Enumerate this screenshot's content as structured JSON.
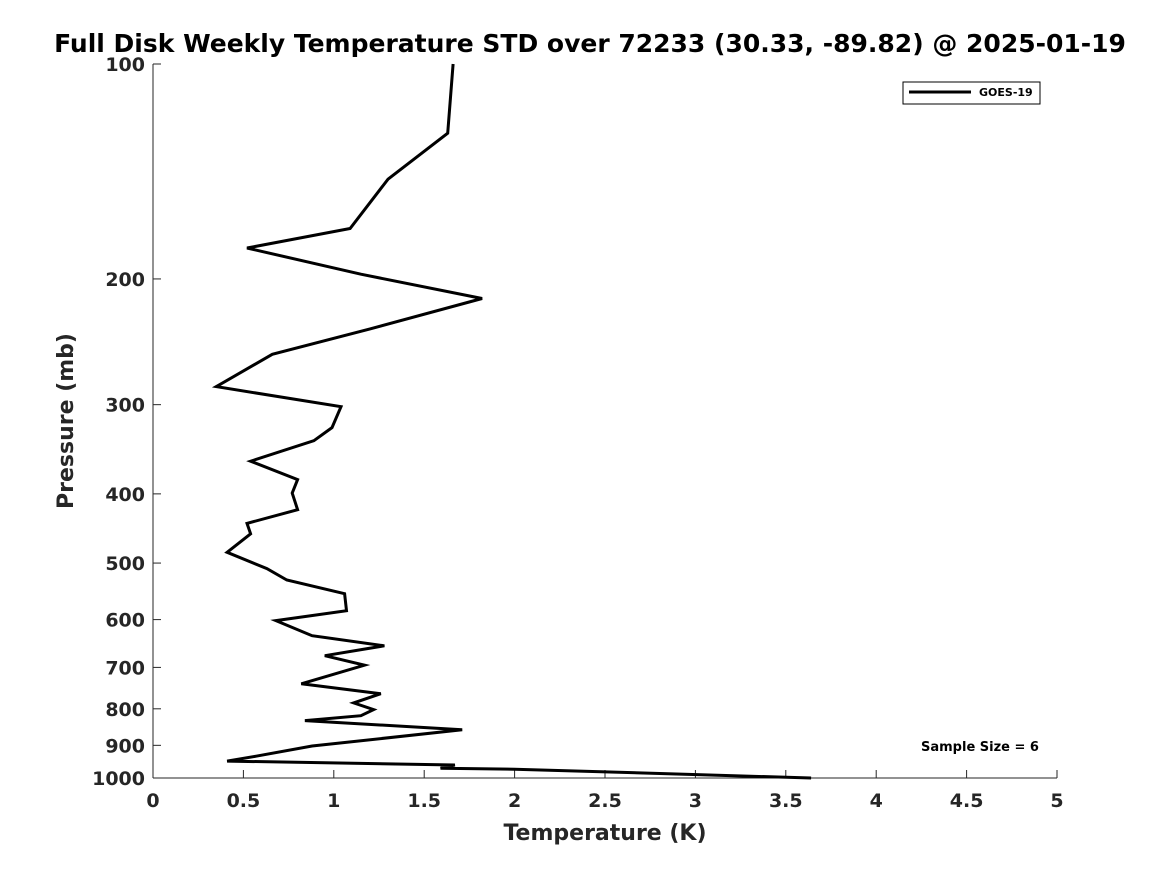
{
  "chart_data": {
    "type": "line",
    "title": "Full Disk Weekly Temperature STD over 72233 (30.33, -89.82) @ 2025-01-19",
    "xlabel": "Temperature (K)",
    "ylabel": "Pressure (mb)",
    "xlim": [
      0,
      5
    ],
    "ylim": [
      1000,
      100
    ],
    "y_scale": "log",
    "y_reversed": true,
    "grid": false,
    "legend_position": "top-right",
    "x_ticks": [
      0,
      0.5,
      1,
      1.5,
      2,
      2.5,
      3,
      3.5,
      4,
      4.5,
      5
    ],
    "x_tick_labels": [
      "0",
      "0.5",
      "1",
      "1.5",
      "2",
      "2.5",
      "3",
      "3.5",
      "4",
      "4.5",
      "5"
    ],
    "y_ticks": [
      100,
      200,
      300,
      400,
      500,
      600,
      700,
      800,
      900,
      1000
    ],
    "y_tick_labels": [
      "100",
      "200",
      "300",
      "400",
      "500",
      "600",
      "700",
      "800",
      "900",
      "1000"
    ],
    "series": [
      {
        "name": "GOES-19",
        "color": "#000000",
        "points": [
          [
            1.66,
            100
          ],
          [
            1.63,
            125
          ],
          [
            1.3,
            145
          ],
          [
            1.09,
            170
          ],
          [
            0.52,
            181
          ],
          [
            1.15,
            197
          ],
          [
            1.82,
            213
          ],
          [
            1.2,
            235
          ],
          [
            0.66,
            255
          ],
          [
            0.35,
            283
          ],
          [
            1.04,
            302
          ],
          [
            0.99,
            323
          ],
          [
            0.89,
            337
          ],
          [
            0.54,
            360
          ],
          [
            0.8,
            382
          ],
          [
            0.77,
            399
          ],
          [
            0.8,
            421
          ],
          [
            0.52,
            440
          ],
          [
            0.54,
            455
          ],
          [
            0.41,
            483
          ],
          [
            0.63,
            509
          ],
          [
            0.74,
            528
          ],
          [
            1.06,
            552
          ],
          [
            1.07,
            583
          ],
          [
            0.68,
            602
          ],
          [
            0.88,
            632
          ],
          [
            1.28,
            653
          ],
          [
            0.95,
            674
          ],
          [
            1.17,
            695
          ],
          [
            0.82,
            738
          ],
          [
            1.26,
            762
          ],
          [
            1.11,
            785
          ],
          [
            1.22,
            802
          ],
          [
            1.15,
            818
          ],
          [
            0.84,
            831
          ],
          [
            1.71,
            856
          ],
          [
            0.88,
            902
          ],
          [
            0.57,
            932
          ],
          [
            0.41,
            947
          ],
          [
            1.67,
            959
          ],
          [
            1.59,
            969
          ],
          [
            2.0,
            972
          ],
          [
            3.64,
            1000
          ]
        ]
      }
    ],
    "annotation": "Sample Size = 6"
  }
}
